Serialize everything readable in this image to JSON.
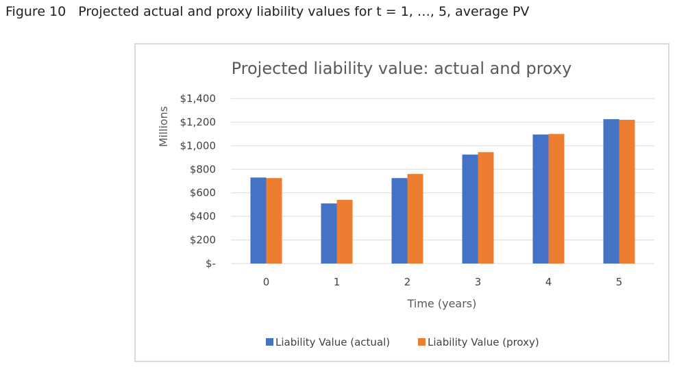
{
  "figure_caption": {
    "number": "Figure 10",
    "text": "Projected actual and proxy liability values for t = 1, …, 5, average PV"
  },
  "colors": {
    "actual": "#4472c4",
    "proxy": "#ed7d31",
    "grid": "#d9d9d9"
  },
  "chart_data": {
    "type": "bar",
    "title": "Projected liability value: actual and proxy",
    "xlabel": "Time (years)",
    "ylabel": "Millions",
    "categories": [
      "0",
      "1",
      "2",
      "3",
      "4",
      "5"
    ],
    "ylim": [
      0,
      1400
    ],
    "yticks": [
      0,
      200,
      400,
      600,
      800,
      1000,
      1200,
      1400
    ],
    "ytick_labels": [
      "$-",
      "$200",
      "$400",
      "$600",
      "$800",
      "$1,000",
      "$1,200",
      "$1,400"
    ],
    "grid": true,
    "legend_position": "bottom",
    "series": [
      {
        "name": "Liability Value (actual)",
        "values": [
          730,
          510,
          725,
          925,
          1095,
          1225
        ]
      },
      {
        "name": "Liability Value (proxy)",
        "values": [
          725,
          540,
          760,
          945,
          1100,
          1220
        ]
      }
    ]
  }
}
